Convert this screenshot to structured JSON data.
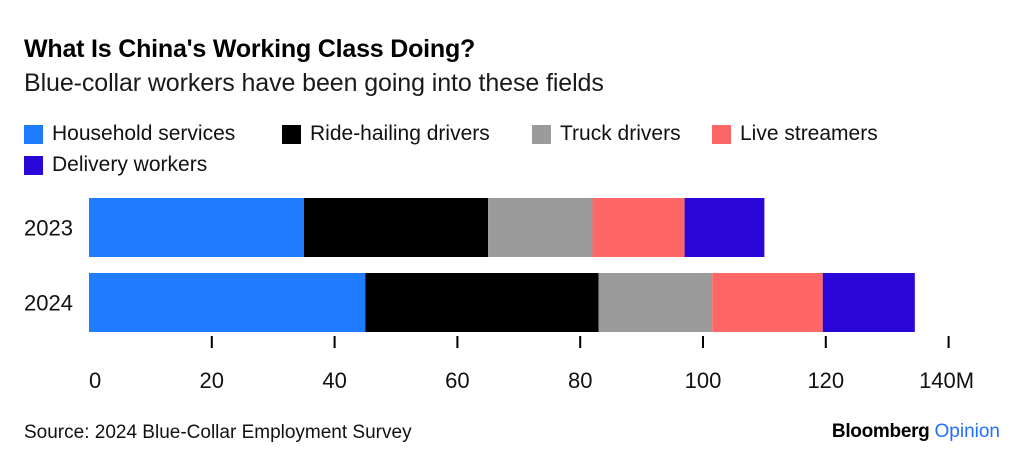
{
  "header": {
    "title": "What Is China's Working Class Doing?",
    "subtitle": "Blue-collar workers have been going into these fields"
  },
  "chart_data": {
    "type": "bar",
    "orientation": "horizontal",
    "stacked": true,
    "title": "What Is China's Working Class Doing?",
    "subtitle": "Blue-collar workers have been going into these fields",
    "categories": [
      "2023",
      "2024"
    ],
    "series": [
      {
        "name": "Household services",
        "color": "#1f7cff",
        "values": [
          35,
          45
        ]
      },
      {
        "name": "Ride-hailing drivers",
        "color": "#000000",
        "values": [
          30,
          38
        ]
      },
      {
        "name": "Truck drivers",
        "color": "#9b9b9b",
        "values": [
          17,
          18.5
        ]
      },
      {
        "name": "Live streamers",
        "color": "#ff6666",
        "values": [
          15,
          18
        ]
      },
      {
        "name": "Delivery workers",
        "color": "#2b06d9",
        "values": [
          13,
          15
        ]
      }
    ],
    "xlim": [
      0,
      140
    ],
    "xticks": [
      "0",
      "20",
      "40",
      "60",
      "80",
      "100",
      "120",
      "140M"
    ],
    "xlabel": "",
    "ylabel": "",
    "legend_position": "top",
    "grid": false
  },
  "footer": {
    "source": "Source: 2024 Blue-Collar Employment Survey",
    "brand_primary": "Bloomberg",
    "brand_secondary": "Opinion"
  }
}
